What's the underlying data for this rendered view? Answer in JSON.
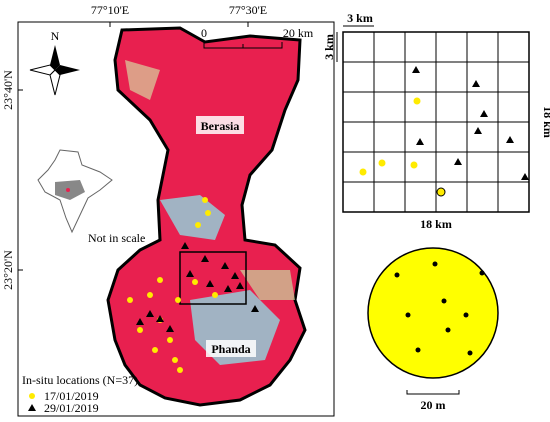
{
  "map": {
    "longitude_labels": [
      "77°10'E",
      "77°30'E"
    ],
    "latitude_labels": [
      "23°40'N",
      "23°20'N"
    ],
    "scale_bar": {
      "start": "0",
      "end": "20 km"
    },
    "north_label": "N",
    "places": [
      "Berasia",
      "Phanda"
    ],
    "inset_note": "Not in scale",
    "legend": {
      "title": "In-situ locations (N=37)",
      "items": [
        "17/01/2019",
        "29/01/2019"
      ]
    }
  },
  "grid": {
    "cell_width": "3 km",
    "cell_height": "3 km",
    "width": "18 km",
    "height": "18 km"
  },
  "plot": {
    "diameter": "20 m"
  }
}
